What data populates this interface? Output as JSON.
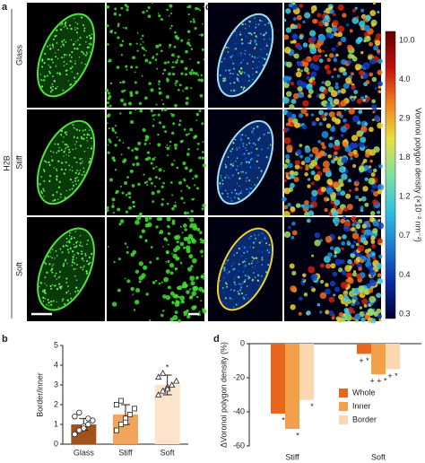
{
  "panel_a": {
    "label": "a",
    "group_label": "H2B",
    "rows": [
      "Glass",
      "Stiff",
      "Soft"
    ]
  },
  "panel_c": {
    "label": "c",
    "colorbar": {
      "label": "Voronoi polygon density (×10⁻² nm⁻²)",
      "tick_labels": [
        "10.0",
        "4.0",
        "2.9",
        "1.8",
        "1.2",
        "0.7",
        "0.4",
        "0.3"
      ]
    }
  },
  "chart_data": [
    {
      "type": "bar",
      "panel": "b",
      "ylabel": "Border/inner",
      "categories": [
        "Glass",
        "Stiff",
        "Soft"
      ],
      "values": [
        1.0,
        1.5,
        3.0
      ],
      "errors": [
        0.3,
        0.5,
        0.5
      ],
      "colors": [
        "#a0521c",
        "#f0a45c",
        "#fde3cc"
      ],
      "points": [
        [
          0.5,
          0.7,
          0.9,
          1.0,
          1.2,
          1.4,
          1.6,
          0.8,
          1.3
        ],
        [
          0.7,
          1.0,
          1.3,
          1.5,
          1.8,
          2.0,
          2.2,
          1.1
        ],
        [
          2.5,
          2.7,
          2.9,
          3.0,
          3.2,
          3.4,
          3.6,
          2.8
        ]
      ],
      "annotations": [
        "",
        "",
        "*"
      ],
      "ylim": [
        0,
        5
      ],
      "yticks": [
        0,
        1,
        2,
        3,
        4,
        5
      ]
    },
    {
      "type": "grouped_bar",
      "panel": "d",
      "ylabel": "ΔVoronoi polygon density (%)",
      "categories": [
        "Stiff",
        "Soft"
      ],
      "series": [
        {
          "name": "Whole",
          "color": "#e8661c",
          "values": [
            -41,
            -6
          ],
          "annotations": [
            "*",
            "+ *"
          ]
        },
        {
          "name": "Inner",
          "color": "#f4a04a",
          "values": [
            -50,
            -18
          ],
          "annotations": [
            "*",
            "+ + *"
          ]
        },
        {
          "name": "Border",
          "color": "#fbd7b0",
          "values": [
            -33,
            -15
          ],
          "annotations": [
            "*",
            "+ *"
          ]
        }
      ],
      "ylim": [
        -60,
        0
      ],
      "yticks": [
        0,
        -20,
        -40,
        -60
      ]
    }
  ]
}
